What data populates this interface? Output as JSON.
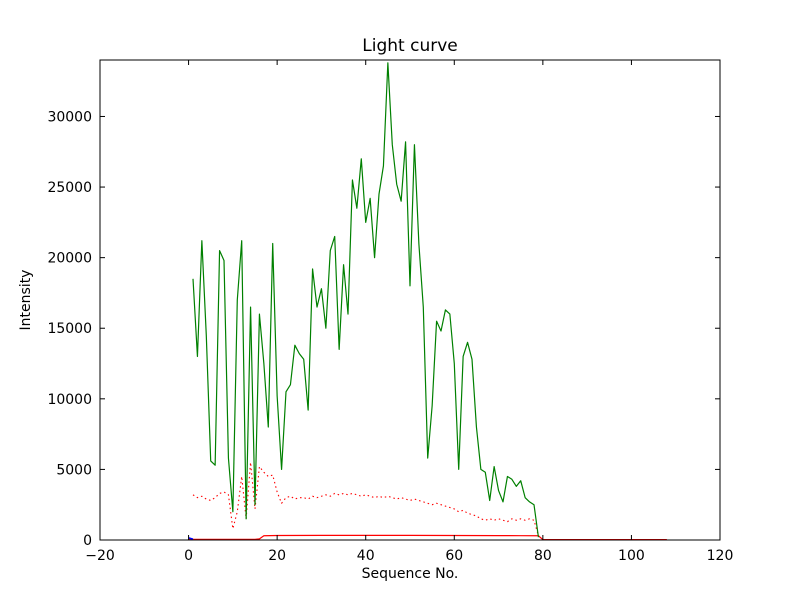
{
  "chart_data": {
    "type": "line",
    "title": "Light curve",
    "xlabel": "Sequence No.",
    "ylabel": "Intensity",
    "xlim": [
      -20,
      120
    ],
    "ylim": [
      0,
      34000
    ],
    "grid": false,
    "legend": null,
    "xticks": {
      "values": [
        -20,
        0,
        20,
        40,
        60,
        80,
        100,
        120
      ],
      "labels": [
        "−20",
        "0",
        "20",
        "40",
        "60",
        "80",
        "100",
        "120"
      ]
    },
    "yticks": {
      "values": [
        0,
        5000,
        10000,
        15000,
        20000,
        25000,
        30000
      ],
      "labels": [
        "0",
        "5000",
        "10000",
        "15000",
        "20000",
        "25000",
        "30000"
      ]
    },
    "series": [
      {
        "name": "intensity-dotted-red",
        "color": "#ff0000",
        "style": "dotted",
        "width": 1.1,
        "x": [
          1,
          2,
          3,
          4,
          5,
          6,
          7,
          8,
          9,
          10,
          11,
          12,
          13,
          14,
          15,
          16,
          17,
          18,
          19,
          20,
          21,
          22,
          23,
          24,
          25,
          26,
          27,
          28,
          29,
          30,
          31,
          32,
          33,
          34,
          35,
          36,
          37,
          38,
          39,
          40,
          41,
          42,
          43,
          44,
          45,
          46,
          47,
          48,
          49,
          50,
          51,
          52,
          53,
          54,
          55,
          56,
          57,
          58,
          59,
          60,
          61,
          62,
          63,
          64,
          65,
          66,
          67,
          68,
          69,
          70,
          71,
          72,
          73,
          74,
          75,
          76,
          77,
          78,
          79
        ],
        "y": [
          3200,
          3000,
          3100,
          2900,
          2800,
          3000,
          3300,
          3400,
          3200,
          800,
          2000,
          4500,
          1500,
          5500,
          2200,
          5200,
          4800,
          4500,
          4600,
          3400,
          2600,
          3000,
          3100,
          2900,
          3000,
          3000,
          2900,
          3100,
          3000,
          3100,
          3200,
          3100,
          3300,
          3200,
          3300,
          3200,
          3300,
          3200,
          3100,
          3200,
          3100,
          3000,
          3100,
          3000,
          3100,
          3000,
          2900,
          3000,
          2900,
          2800,
          2900,
          2800,
          2700,
          2600,
          2500,
          2600,
          2500,
          2400,
          2300,
          2200,
          2000,
          2100,
          1900,
          1800,
          1700,
          1500,
          1400,
          1500,
          1400,
          1500,
          1400,
          1300,
          1500,
          1400,
          1500,
          1400,
          1500,
          1400,
          300
        ]
      },
      {
        "name": "intensity-solid-red",
        "color": "#ff0000",
        "style": "solid",
        "width": 1.2,
        "x": [
          0,
          5,
          10,
          15,
          16,
          17,
          20,
          30,
          40,
          50,
          60,
          70,
          75,
          79,
          80,
          85,
          90,
          95,
          100,
          104,
          108
        ],
        "y": [
          50,
          50,
          50,
          50,
          80,
          300,
          320,
          330,
          330,
          330,
          320,
          310,
          305,
          300,
          30,
          30,
          30,
          30,
          30,
          30,
          30
        ]
      },
      {
        "name": "intensity-blue",
        "color": "#0000ff",
        "style": "solid",
        "width": 1.5,
        "x": [
          0,
          1
        ],
        "y": [
          150,
          60
        ]
      },
      {
        "name": "intensity-green",
        "color": "#008000",
        "style": "solid",
        "width": 1.2,
        "x": [
          1,
          2,
          3,
          4,
          5,
          6,
          7,
          8,
          9,
          10,
          11,
          12,
          13,
          14,
          15,
          16,
          17,
          18,
          19,
          20,
          21,
          22,
          23,
          24,
          25,
          26,
          27,
          28,
          29,
          30,
          31,
          32,
          33,
          34,
          35,
          36,
          37,
          38,
          39,
          40,
          41,
          42,
          43,
          44,
          45,
          46,
          47,
          48,
          49,
          50,
          51,
          52,
          53,
          54,
          55,
          56,
          57,
          58,
          59,
          60,
          61,
          62,
          63,
          64,
          65,
          66,
          67,
          68,
          69,
          70,
          71,
          72,
          73,
          74,
          75,
          76,
          77,
          78,
          79
        ],
        "y": [
          18500,
          13000,
          21200,
          14500,
          5600,
          5300,
          20500,
          19800,
          5800,
          2000,
          17000,
          21200,
          1500,
          16500,
          2500,
          16000,
          12500,
          8000,
          21000,
          10200,
          5000,
          10500,
          11000,
          13800,
          13200,
          12800,
          9200,
          19200,
          16500,
          17800,
          15000,
          20500,
          21500,
          13500,
          19500,
          16000,
          25500,
          23500,
          27000,
          22500,
          24200,
          20000,
          24500,
          26500,
          33800,
          28000,
          25200,
          24000,
          28200,
          18000,
          28000,
          21000,
          16500,
          5800,
          9500,
          15500,
          14800,
          16300,
          16000,
          12500,
          5000,
          13000,
          14000,
          12800,
          8000,
          5000,
          4800,
          2800,
          5200,
          3500,
          2700,
          4500,
          4300,
          3800,
          4200,
          3000,
          2700,
          2500,
          200
        ]
      }
    ]
  }
}
